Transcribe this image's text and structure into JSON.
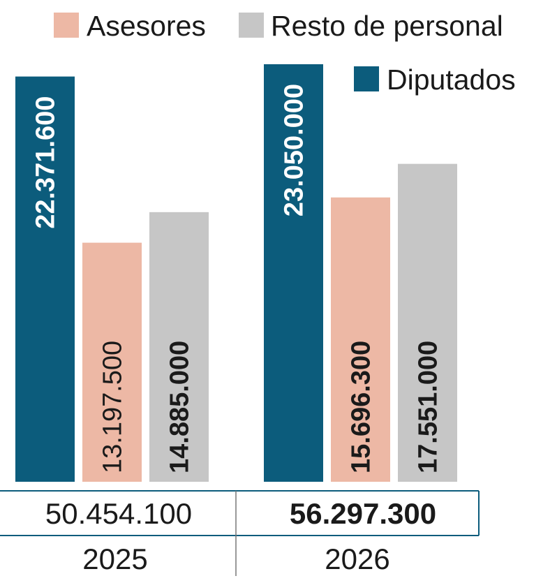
{
  "chart_data": {
    "type": "bar",
    "categories": [
      "2025",
      "2026"
    ],
    "series": [
      {
        "name": "Diputados",
        "values": [
          22371600,
          23050000
        ],
        "labels": [
          "22.371.600",
          "23.050.000"
        ],
        "color": "#0c5c7c",
        "label_color": "#ffffff"
      },
      {
        "name": "Asesores",
        "values": [
          13197500,
          15696300
        ],
        "labels": [
          "13.197.500",
          "15.696.300"
        ],
        "color": "#edb8a5",
        "label_color": "#1a1a1a"
      },
      {
        "name": "Resto de personal",
        "values": [
          14885000,
          17551000
        ],
        "labels": [
          "14.885.000",
          "17.551.000"
        ],
        "color": "#c6c6c6",
        "label_color": "#1a1a1a"
      }
    ],
    "totals": [
      "50.454.100",
      "56.297.300"
    ],
    "legend": {
      "asesores": "Asesores",
      "resto": "Resto de personal",
      "diputados": "Diputados"
    },
    "ylim": [
      0,
      23050000
    ],
    "grid": false,
    "legend_position": "top-right"
  }
}
